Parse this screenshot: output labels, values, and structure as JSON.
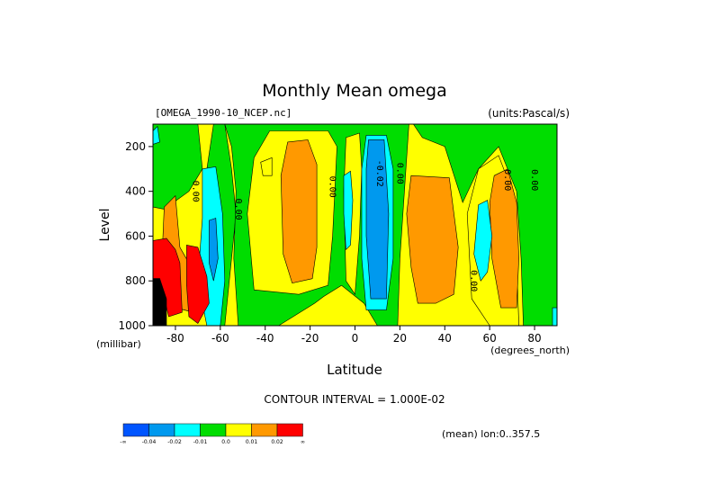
{
  "chart_data": {
    "type": "heatmap",
    "title": "Monthly Mean omega",
    "source_label": "[OMEGA_1990-10_NCEP.nc]",
    "units_label": "(units:Pascal/s)",
    "xlabel": "Latitude",
    "ylabel": "Level",
    "x_unit_label": "(degrees_north)",
    "y_unit_label": "(millibar)",
    "xlim": [
      -90,
      90
    ],
    "ylim": [
      1000,
      100
    ],
    "x_ticks": [
      -80,
      -60,
      -40,
      -20,
      0,
      20,
      40,
      60,
      80
    ],
    "y_ticks": [
      200,
      400,
      600,
      800,
      1000
    ],
    "contour_interval_text": "CONTOUR INTERVAL = 1.000E-02",
    "mean_note": "(mean) lon:0..357.5",
    "contour_labels": [
      {
        "text": "0.00",
        "lat": -71,
        "level": 400
      },
      {
        "text": "0.00",
        "lat": -52,
        "level": 480
      },
      {
        "text": "0.00",
        "lat": -10,
        "level": 380
      },
      {
        "text": "-0.02",
        "lat": 11,
        "level": 320
      },
      {
        "text": "0.00",
        "lat": 20,
        "level": 320
      },
      {
        "text": "0.00",
        "lat": 53,
        "level": 800
      },
      {
        "text": "0.00",
        "lat": 68,
        "level": 350
      },
      {
        "text": "0.00",
        "lat": 80,
        "level": 350
      }
    ],
    "regions": [
      {
        "color": "#ffff00",
        "points": [
          [
            -90,
            100
          ],
          [
            90,
            100
          ],
          [
            90,
            1000
          ],
          [
            -90,
            1000
          ]
        ]
      },
      {
        "color": "#00dd00",
        "points": [
          [
            -90,
            100
          ],
          [
            -70,
            100
          ],
          [
            -68,
            300
          ],
          [
            -74,
            400
          ],
          [
            -85,
            480
          ],
          [
            -90,
            470
          ]
        ]
      },
      {
        "color": "#00dd00",
        "points": [
          [
            -63,
            100
          ],
          [
            -58,
            100
          ],
          [
            -55,
            300
          ],
          [
            -53,
            500
          ],
          [
            -55,
            700
          ],
          [
            -58,
            1000
          ],
          [
            -64,
            1000
          ],
          [
            -64,
            600
          ],
          [
            -66,
            300
          ]
        ]
      },
      {
        "color": "#00dd00",
        "points": [
          [
            -58,
            100
          ],
          [
            24,
            100
          ],
          [
            22,
            400
          ],
          [
            20,
            700
          ],
          [
            19,
            1000
          ],
          [
            10,
            1000
          ],
          [
            4,
            900
          ],
          [
            -6,
            820
          ],
          [
            -14,
            870
          ],
          [
            -18,
            900
          ],
          [
            -34,
            1000
          ],
          [
            -52,
            1000
          ],
          [
            -54,
            700
          ],
          [
            -53,
            400
          ],
          [
            -55,
            200
          ]
        ]
      },
      {
        "color": "#00dd00",
        "points": [
          [
            26,
            100
          ],
          [
            90,
            100
          ],
          [
            90,
            1000
          ],
          [
            75,
            1000
          ],
          [
            74,
            700
          ],
          [
            72,
            400
          ],
          [
            64,
            200
          ],
          [
            55,
            300
          ],
          [
            48,
            450
          ],
          [
            40,
            200
          ],
          [
            30,
            160
          ]
        ]
      },
      {
        "color": "#ffff00",
        "points": [
          [
            -38,
            130
          ],
          [
            -12,
            130
          ],
          [
            -8,
            200
          ],
          [
            -10,
            600
          ],
          [
            -12,
            820
          ],
          [
            -25,
            860
          ],
          [
            -45,
            840
          ],
          [
            -48,
            500
          ],
          [
            -45,
            250
          ]
        ]
      },
      {
        "color": "#ffff00",
        "points": [
          [
            55,
            300
          ],
          [
            64,
            240
          ],
          [
            70,
            400
          ],
          [
            72,
            700
          ],
          [
            73,
            1000
          ],
          [
            60,
            1000
          ],
          [
            52,
            880
          ],
          [
            50,
            500
          ]
        ]
      },
      {
        "color": "#ffff00",
        "points": [
          [
            -4,
            160
          ],
          [
            2,
            140
          ],
          [
            3,
            300
          ],
          [
            2,
            600
          ],
          [
            0,
            860
          ],
          [
            -4,
            800
          ],
          [
            -5,
            400
          ]
        ]
      },
      {
        "color": "#ffff00",
        "points": [
          [
            -42,
            270
          ],
          [
            -37,
            250
          ],
          [
            -37,
            330
          ],
          [
            -41,
            330
          ]
        ]
      },
      {
        "color": "#ff9900",
        "points": [
          [
            -30,
            180
          ],
          [
            -21,
            170
          ],
          [
            -17,
            280
          ],
          [
            -17,
            650
          ],
          [
            -19,
            790
          ],
          [
            -28,
            810
          ],
          [
            -32,
            680
          ],
          [
            -33,
            330
          ]
        ]
      },
      {
        "color": "#ff9900",
        "points": [
          [
            25,
            330
          ],
          [
            42,
            340
          ],
          [
            46,
            650
          ],
          [
            44,
            860
          ],
          [
            36,
            900
          ],
          [
            28,
            900
          ],
          [
            25,
            740
          ],
          [
            23,
            500
          ]
        ]
      },
      {
        "color": "#ff9900",
        "points": [
          [
            62,
            330
          ],
          [
            68,
            300
          ],
          [
            72,
            450
          ],
          [
            73,
            700
          ],
          [
            72,
            920
          ],
          [
            65,
            920
          ],
          [
            61,
            700
          ],
          [
            60,
            450
          ]
        ]
      },
      {
        "color": "#ff9900",
        "points": [
          [
            -85,
            470
          ],
          [
            -80,
            420
          ],
          [
            -78,
            650
          ],
          [
            -74,
            720
          ],
          [
            -70,
            860
          ],
          [
            -72,
            940
          ],
          [
            -80,
            920
          ],
          [
            -86,
            700
          ]
        ]
      },
      {
        "color": "#00ffff",
        "points": [
          [
            -68,
            300
          ],
          [
            -62,
            290
          ],
          [
            -59,
            500
          ],
          [
            -58,
            800
          ],
          [
            -60,
            1000
          ],
          [
            -66,
            1000
          ],
          [
            -70,
            800
          ],
          [
            -68,
            520
          ]
        ]
      },
      {
        "color": "#0099ee",
        "points": [
          [
            -65,
            530
          ],
          [
            -62,
            520
          ],
          [
            -61,
            700
          ],
          [
            -63,
            800
          ],
          [
            -65,
            720
          ]
        ]
      },
      {
        "color": "#00ffff",
        "points": [
          [
            -5,
            330
          ],
          [
            -2,
            310
          ],
          [
            -1,
            440
          ],
          [
            -2,
            640
          ],
          [
            -4,
            660
          ],
          [
            -5,
            500
          ]
        ]
      },
      {
        "color": "#00ffff",
        "points": [
          [
            5,
            150
          ],
          [
            14,
            150
          ],
          [
            17,
            300
          ],
          [
            17,
            700
          ],
          [
            14,
            930
          ],
          [
            5,
            930
          ],
          [
            3,
            700
          ],
          [
            3,
            300
          ]
        ]
      },
      {
        "color": "#0099ee",
        "points": [
          [
            6,
            170
          ],
          [
            13,
            170
          ],
          [
            15,
            500
          ],
          [
            14,
            880
          ],
          [
            7,
            880
          ],
          [
            5,
            600
          ],
          [
            5,
            300
          ]
        ]
      },
      {
        "color": "#00ffff",
        "points": [
          [
            55,
            460
          ],
          [
            59,
            440
          ],
          [
            61,
            600
          ],
          [
            59,
            760
          ],
          [
            56,
            800
          ],
          [
            53,
            680
          ]
        ]
      },
      {
        "color": "#00ffff",
        "points": [
          [
            -90,
            130
          ],
          [
            -88,
            110
          ],
          [
            -87,
            180
          ],
          [
            -90,
            190
          ]
        ]
      },
      {
        "color": "#00ffff",
        "points": [
          [
            88,
            920
          ],
          [
            90,
            920
          ],
          [
            90,
            1000
          ],
          [
            88,
            1000
          ]
        ]
      },
      {
        "color": "#ff0000",
        "points": [
          [
            -90,
            620
          ],
          [
            -84,
            610
          ],
          [
            -80,
            660
          ],
          [
            -78,
            720
          ],
          [
            -77,
            940
          ],
          [
            -83,
            960
          ],
          [
            -87,
            790
          ],
          [
            -90,
            790
          ]
        ]
      },
      {
        "color": "#ff0000",
        "points": [
          [
            -75,
            640
          ],
          [
            -70,
            650
          ],
          [
            -66,
            780
          ],
          [
            -65,
            900
          ],
          [
            -70,
            990
          ],
          [
            -74,
            960
          ],
          [
            -75,
            820
          ]
        ]
      },
      {
        "color": "#000000",
        "points": [
          [
            -90,
            790
          ],
          [
            -87,
            790
          ],
          [
            -84,
            880
          ],
          [
            -84,
            1000
          ],
          [
            -90,
            1000
          ]
        ]
      }
    ],
    "legend": {
      "colors": [
        "#0055ff",
        "#0099ee",
        "#00ffff",
        "#00dd00",
        "#ffff00",
        "#ff9900",
        "#ff0000"
      ],
      "labels": [
        "-∞",
        "-0.04",
        "-0.02",
        "-0.01",
        "0.0",
        "0.01",
        "0.02",
        "∞"
      ]
    }
  }
}
